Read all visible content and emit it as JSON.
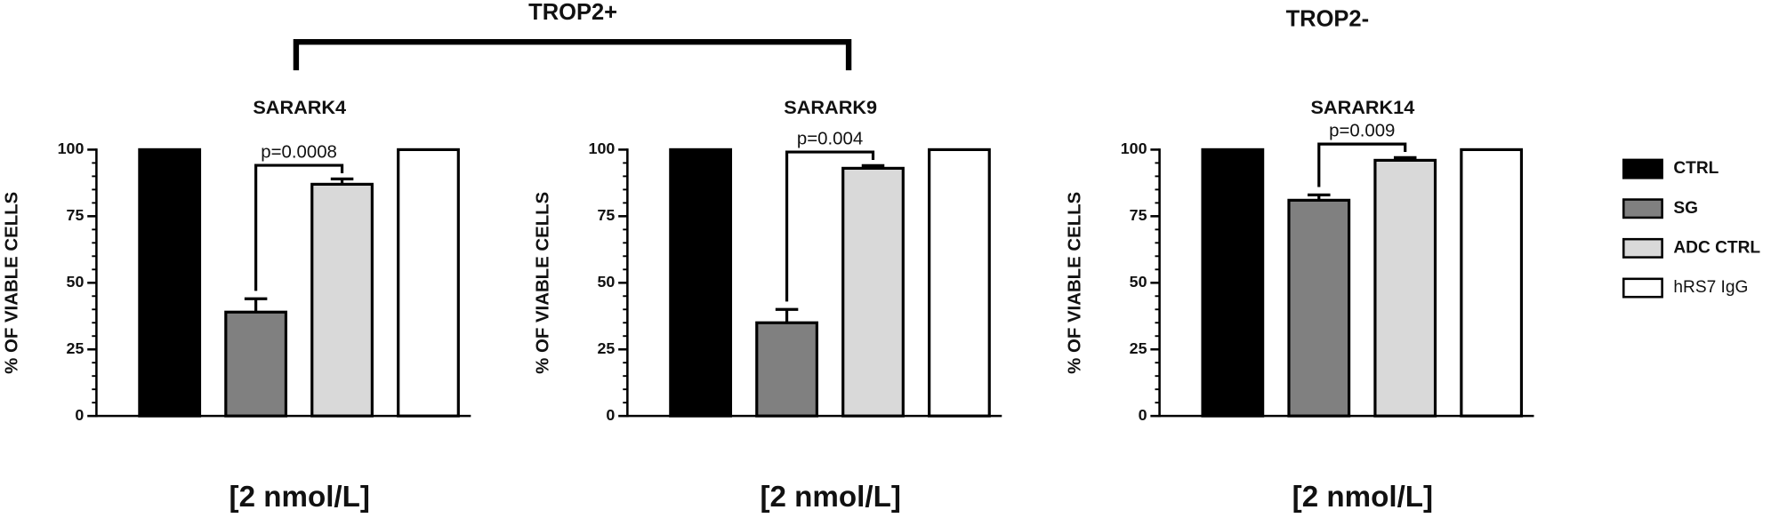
{
  "groups": [
    {
      "label": "TROP2+"
    },
    {
      "label": "TROP2-"
    }
  ],
  "legend": [
    {
      "name": "CTRL",
      "color": "#000000"
    },
    {
      "name": "SG",
      "color": "#808080"
    },
    {
      "name": "ADC CTRL",
      "color": "#d9d9d9"
    },
    {
      "name": "hRS7 IgG",
      "color": "#ffffff"
    }
  ],
  "chart_data": [
    {
      "type": "bar",
      "title": "SARARK4",
      "xlabel": "[2 nmol/L]",
      "ylabel": "% OF VIABLE CELLS",
      "values": [
        100,
        39,
        87,
        100
      ],
      "errors": [
        0,
        5,
        2,
        0
      ],
      "p_value": "p=0.0008",
      "ylim": [
        0,
        100
      ],
      "yticks": [
        0,
        25,
        50,
        75,
        100
      ]
    },
    {
      "type": "bar",
      "title": "SARARK9",
      "xlabel": "[2 nmol/L]",
      "ylabel": "% OF VIABLE CELLS",
      "values": [
        100,
        35,
        93,
        100
      ],
      "errors": [
        0,
        5,
        1,
        0
      ],
      "p_value": "p=0.004",
      "ylim": [
        0,
        100
      ],
      "yticks": [
        0,
        25,
        50,
        75,
        100
      ]
    },
    {
      "type": "bar",
      "title": "SARARK14",
      "xlabel": "[2 nmol/L]",
      "ylabel": "% OF VIABLE CELLS",
      "values": [
        100,
        81,
        96,
        100
      ],
      "errors": [
        0,
        2,
        1,
        0
      ],
      "p_value": "p=0.009",
      "ylim": [
        0,
        100
      ],
      "yticks": [
        0,
        25,
        50,
        75,
        100
      ]
    }
  ]
}
